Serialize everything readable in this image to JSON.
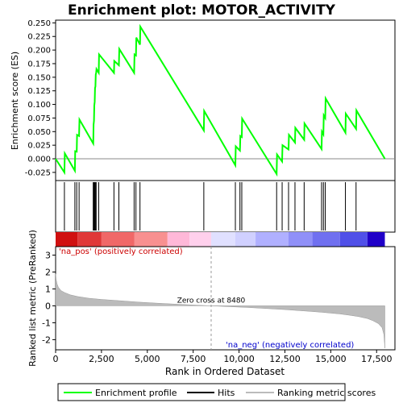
{
  "chart_data": {
    "type": "line",
    "title": "Enrichment plot: MOTOR_ACTIVITY",
    "top_panel": {
      "ylabel": "Enrichment score (ES)",
      "ylim": [
        -0.04,
        0.255
      ],
      "yticks": [
        -0.025,
        0.0,
        0.025,
        0.05,
        0.075,
        0.1,
        0.125,
        0.15,
        0.175,
        0.2,
        0.225,
        0.25
      ],
      "ytick_labels": [
        "-0.025",
        "0.000",
        "0.025",
        "0.050",
        "0.075",
        "0.100",
        "0.125",
        "0.150",
        "0.175",
        "0.200",
        "0.225",
        "0.250"
      ],
      "series": [
        {
          "name": "Enrichment profile",
          "color": "#00ff00",
          "x": [
            0,
            480,
            500,
            1050,
            1070,
            1150,
            1170,
            1280,
            1300,
            2050,
            2070,
            2090,
            2110,
            2130,
            2150,
            2170,
            2190,
            2210,
            2230,
            2350,
            2370,
            3180,
            3200,
            3450,
            3470,
            4280,
            4300,
            4380,
            4400,
            4600,
            4620,
            8080,
            8100,
            9800,
            9820,
            10050,
            10070,
            10150,
            10170,
            12050,
            12070,
            12350,
            12370,
            12700,
            12720,
            13050,
            13070,
            13550,
            13570,
            14500,
            14520,
            14600,
            14620,
            14700,
            14720,
            15800,
            15820,
            16380,
            16400,
            17950
          ],
          "y": [
            0.0,
            -0.025,
            0.01,
            -0.022,
            0.014,
            0.013,
            0.044,
            0.042,
            0.072,
            0.028,
            0.063,
            0.07,
            0.098,
            0.105,
            0.13,
            0.133,
            0.155,
            0.158,
            0.165,
            0.158,
            0.192,
            0.158,
            0.18,
            0.172,
            0.202,
            0.158,
            0.192,
            0.19,
            0.223,
            0.21,
            0.243,
            0.052,
            0.088,
            -0.012,
            0.023,
            0.015,
            0.042,
            0.04,
            0.074,
            -0.028,
            0.008,
            -0.005,
            0.025,
            0.017,
            0.044,
            0.03,
            0.057,
            0.035,
            0.065,
            0.018,
            0.05,
            0.045,
            0.08,
            0.075,
            0.111,
            0.048,
            0.083,
            0.055,
            0.089,
            0.0
          ]
        }
      ]
    },
    "hits_panel": {
      "name": "Hits",
      "hit_positions": [
        480,
        1050,
        1150,
        1280,
        2050,
        2090,
        2130,
        2170,
        2210,
        2350,
        3180,
        3450,
        4280,
        4380,
        4600,
        8080,
        9800,
        10050,
        10150,
        12050,
        12350,
        12700,
        13050,
        13550,
        14500,
        14600,
        14700,
        15800,
        16380
      ]
    },
    "bottom_panel": {
      "name": "Ranking metric scores",
      "ylabel": "Ranked list metric (PreRanked)",
      "xlabel": "Rank in Ordered Dataset",
      "xlim": [
        0,
        18500
      ],
      "ylim": [
        -2.6,
        3.5
      ],
      "xticks": [
        0,
        2500,
        5000,
        7500,
        10000,
        12500,
        15000,
        17500
      ],
      "xtick_labels": [
        "0",
        "2,500",
        "5,000",
        "7,500",
        "10,000",
        "12,500",
        "15,000",
        "17,500"
      ],
      "yticks": [
        -2,
        -1,
        0,
        1,
        2,
        3
      ],
      "ytick_labels": [
        "-2",
        "-1",
        "0",
        "1",
        "2",
        "3"
      ],
      "metric_curve": {
        "x": [
          0,
          30,
          80,
          150,
          300,
          500,
          800,
          1200,
          1800,
          2500,
          3500,
          4500,
          5500,
          6500,
          7500,
          8480,
          9500,
          10500,
          11500,
          12500,
          13500,
          14500,
          15500,
          16000,
          16500,
          17000,
          17300,
          17600,
          17800,
          17900,
          17950
        ],
        "y": [
          1.9,
          1.55,
          1.3,
          1.1,
          0.9,
          0.78,
          0.65,
          0.55,
          0.45,
          0.38,
          0.3,
          0.22,
          0.16,
          0.1,
          0.05,
          0.0,
          -0.05,
          -0.1,
          -0.16,
          -0.22,
          -0.3,
          -0.38,
          -0.48,
          -0.55,
          -0.63,
          -0.75,
          -0.88,
          -1.05,
          -1.3,
          -1.7,
          -2.5
        ]
      },
      "zero_cross_label": "Zero cross at 8480",
      "zero_cross": 8480,
      "pos_label": "'na_pos' (positively correlated)",
      "neg_label": "'na_neg' (negatively correlated)",
      "pos_label_color": "#cc0000",
      "neg_label_color": "#0000cc"
    },
    "colorbar": {
      "segments": [
        {
          "from": 0,
          "to": 1200,
          "color": "#d01010"
        },
        {
          "from": 1200,
          "to": 2500,
          "color": "#e03838"
        },
        {
          "from": 2500,
          "to": 4300,
          "color": "#f06868"
        },
        {
          "from": 4300,
          "to": 6100,
          "color": "#f89090"
        },
        {
          "from": 6100,
          "to": 7300,
          "color": "#ffb8d8"
        },
        {
          "from": 7300,
          "to": 8480,
          "color": "#ffd0ec"
        },
        {
          "from": 8480,
          "to": 9800,
          "color": "#e0e0ff"
        },
        {
          "from": 9800,
          "to": 10900,
          "color": "#d0d0ff"
        },
        {
          "from": 10900,
          "to": 12700,
          "color": "#b0b0ff"
        },
        {
          "from": 12700,
          "to": 14000,
          "color": "#9090f8"
        },
        {
          "from": 14000,
          "to": 15500,
          "color": "#7070f0"
        },
        {
          "from": 15500,
          "to": 17000,
          "color": "#5050e8"
        },
        {
          "from": 17000,
          "to": 17950,
          "color": "#2000c8"
        }
      ]
    },
    "legend": {
      "items": [
        {
          "label": "Enrichment profile",
          "color": "#00ff00"
        },
        {
          "label": "Hits",
          "color": "#000000"
        },
        {
          "label": "Ranking metric scores",
          "color": "#bbbbbb"
        }
      ]
    }
  }
}
